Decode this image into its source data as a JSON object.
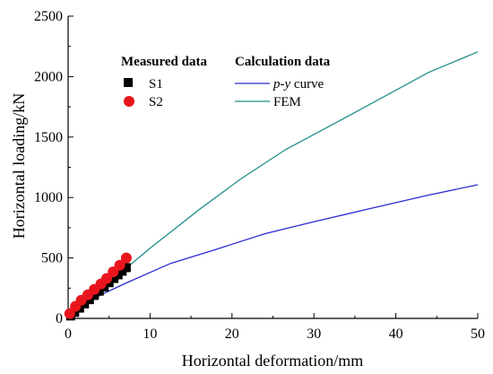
{
  "chart_data": {
    "type": "line",
    "xlabel": "Horizontal deformation/mm",
    "ylabel": "Horizontal loading/kN",
    "xlim": [
      0,
      50
    ],
    "ylim": [
      0,
      2500
    ],
    "xticks": [
      0,
      10,
      20,
      30,
      40,
      50
    ],
    "yticks": [
      0,
      500,
      1000,
      1500,
      2000,
      2500
    ],
    "grid": false,
    "legend": {
      "measured_title": "Measured data",
      "calculation_title": "Calculation data",
      "placement": "top-left"
    },
    "measured_series": [
      {
        "name": "S1",
        "marker": "square",
        "color": "#000000",
        "x": [
          0.3,
          0.8,
          1.4,
          2.0,
          2.6,
          3.2,
          3.8,
          4.4,
          5.0,
          5.6,
          6.1,
          6.6,
          7.1
        ],
        "y": [
          20,
          50,
          85,
          120,
          155,
          190,
          225,
          260,
          295,
          330,
          360,
          390,
          420
        ]
      },
      {
        "name": "S2",
        "marker": "circle",
        "color": "#e8161c",
        "x": [
          0.2,
          0.9,
          1.6,
          2.4,
          3.2,
          4.0,
          4.7,
          5.5,
          6.3,
          7.1
        ],
        "y": [
          40,
          100,
          150,
          195,
          240,
          285,
          330,
          385,
          440,
          500
        ]
      }
    ],
    "calculation_series": [
      {
        "name": "p-y curve",
        "name_italic": "p-y",
        "name_rest": " curve",
        "color": "#2b2bd0",
        "x": [
          0,
          2,
          4,
          7,
          12.5,
          18,
          24,
          30,
          37,
          44,
          50
        ],
        "y": [
          0,
          110,
          195,
          290,
          455,
          570,
          700,
          800,
          910,
          1020,
          1105
        ]
      },
      {
        "name": "FEM",
        "color": "#1f8f8a",
        "x": [
          0,
          2,
          4,
          7,
          10,
          16,
          21,
          26.5,
          33,
          39,
          44,
          50
        ],
        "y": [
          0,
          130,
          240,
          410,
          580,
          900,
          1150,
          1395,
          1630,
          1850,
          2035,
          2205
        ]
      }
    ]
  }
}
